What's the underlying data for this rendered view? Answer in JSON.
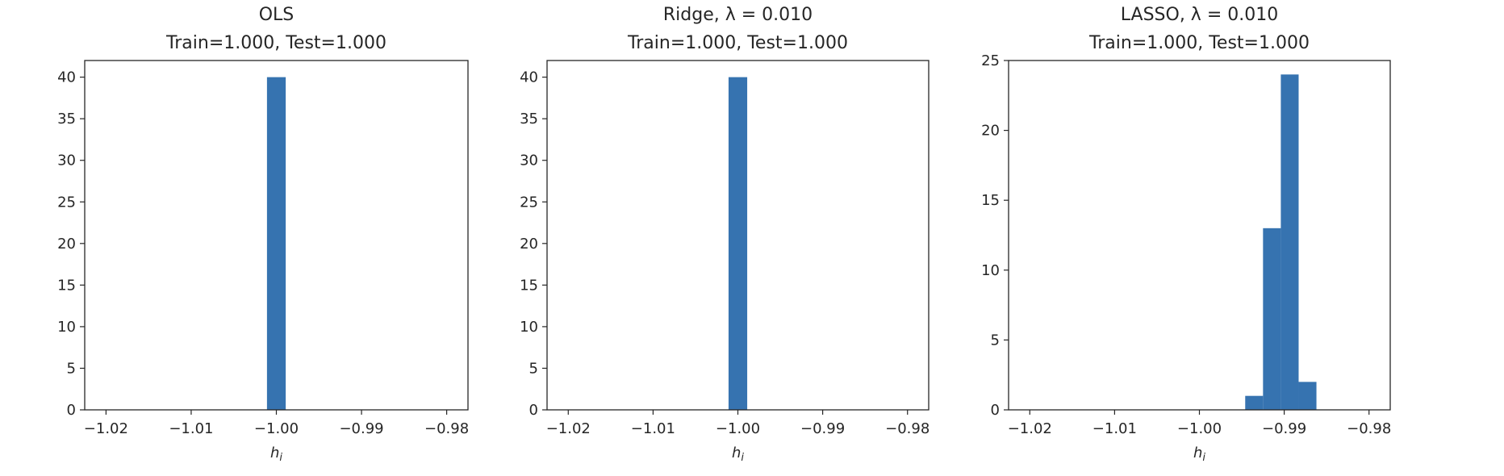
{
  "chart_data": [
    {
      "type": "bar",
      "title": "OLS",
      "subtitle": "Train=1.000, Test=1.000",
      "xlabel": "h_i",
      "ylabel": "",
      "xlim": [
        -1.0225,
        -0.9775
      ],
      "ylim": [
        0,
        42
      ],
      "xticks": [
        -1.02,
        -1.01,
        -1.0,
        -0.99,
        -0.98
      ],
      "xtick_labels": [
        "−1.02",
        "−1.01",
        "−1.00",
        "−0.99",
        "−0.98"
      ],
      "yticks": [
        0,
        5,
        10,
        15,
        20,
        25,
        30,
        35,
        40
      ],
      "ytick_labels": [
        "0",
        "5",
        "10",
        "15",
        "20",
        "25",
        "30",
        "35",
        "40"
      ],
      "bins": [
        {
          "x0": -1.0011,
          "x1": -0.9989,
          "count": 40
        }
      ],
      "grid": false,
      "color": "#3673b0"
    },
    {
      "type": "bar",
      "title": "Ridge, λ = 0.010",
      "subtitle": "Train=1.000, Test=1.000",
      "xlabel": "h_i",
      "ylabel": "",
      "xlim": [
        -1.0225,
        -0.9775
      ],
      "ylim": [
        0,
        42
      ],
      "xticks": [
        -1.02,
        -1.01,
        -1.0,
        -0.99,
        -0.98
      ],
      "xtick_labels": [
        "−1.02",
        "−1.01",
        "−1.00",
        "−0.99",
        "−0.98"
      ],
      "yticks": [
        0,
        5,
        10,
        15,
        20,
        25,
        30,
        35,
        40
      ],
      "ytick_labels": [
        "0",
        "5",
        "10",
        "15",
        "20",
        "25",
        "30",
        "35",
        "40"
      ],
      "bins": [
        {
          "x0": -1.0011,
          "x1": -0.9989,
          "count": 40
        }
      ],
      "grid": false,
      "color": "#3673b0"
    },
    {
      "type": "bar",
      "title": "LASSO, λ = 0.010",
      "subtitle": "Train=1.000, Test=1.000",
      "xlabel": "h_i",
      "ylabel": "",
      "xlim": [
        -1.0225,
        -0.9775
      ],
      "ylim": [
        0,
        25
      ],
      "xticks": [
        -1.02,
        -1.01,
        -1.0,
        -0.99,
        -0.98
      ],
      "xtick_labels": [
        "−1.02",
        "−1.01",
        "−1.00",
        "−0.99",
        "−0.98"
      ],
      "yticks": [
        0,
        5,
        10,
        15,
        20,
        25
      ],
      "ytick_labels": [
        "0",
        "5",
        "10",
        "15",
        "20",
        "25"
      ],
      "bins": [
        {
          "x0": -0.9946,
          "x1": -0.9925,
          "count": 1
        },
        {
          "x0": -0.9925,
          "x1": -0.9904,
          "count": 13
        },
        {
          "x0": -0.9904,
          "x1": -0.9883,
          "count": 24
        },
        {
          "x0": -0.9883,
          "x1": -0.9862,
          "count": 2
        }
      ],
      "grid": false,
      "color": "#3673b0"
    }
  ]
}
